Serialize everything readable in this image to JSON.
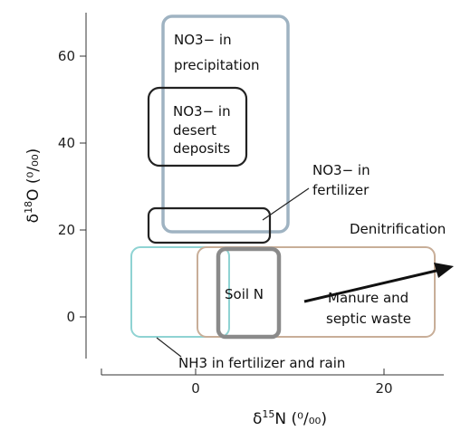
{
  "diagram": {
    "x_axis": {
      "label": "δ15N (⁰/₀₀)",
      "label_main": "δ",
      "label_sup": "15",
      "label_rest": "N (⁰/₀₀)",
      "ticks": [
        "0",
        "20"
      ]
    },
    "y_axis": {
      "label": "δ18O (⁰/₀₀)",
      "label_main": "δ",
      "label_sup": "18",
      "label_rest": "O (⁰/₀₀)",
      "ticks": [
        "0",
        "20",
        "40",
        "60"
      ]
    },
    "regions": [
      {
        "id": "no3-precipitation",
        "label_line1": "NO3− in",
        "label_line2": "precipitation",
        "color": "#9fb3c2",
        "x_range": [
          -3,
          10
        ],
        "y_range": [
          20,
          68
        ]
      },
      {
        "id": "no3-desert",
        "label_line1": "NO3− in",
        "label_line2": "desert",
        "label_line3": "deposits",
        "color": "#222222",
        "x_range": [
          -5,
          5.5
        ],
        "y_range": [
          36,
          52
        ]
      },
      {
        "id": "no3-fertilizer",
        "label_line1": "NO3− in",
        "label_line2": "fertilizer",
        "color": "#222222",
        "x_range": [
          -5,
          8
        ],
        "y_range": [
          17.5,
          24.5
        ]
      },
      {
        "id": "nh3-fertilizer-rain",
        "label": "NH3 in fertilizer and rain",
        "color": "#8fd3d3",
        "x_range": [
          -7,
          3
        ],
        "y_range": [
          -4.5,
          15.5
        ]
      },
      {
        "id": "manure-septic",
        "label_line1": "Manure and",
        "label_line2": "septic waste",
        "color": "#c8ae98",
        "x_range": [
          0.5,
          25
        ],
        "y_range": [
          -4.5,
          15.5
        ]
      },
      {
        "id": "soil-n",
        "label": "Soil N",
        "color": "#8a8a8a",
        "x_range": [
          2.5,
          9
        ],
        "y_range": [
          -4.5,
          15.5
        ]
      }
    ],
    "arrow": {
      "label": "Denitrification",
      "from": [
        11.5,
        3
      ],
      "to": [
        27.5,
        11.5
      ]
    }
  }
}
